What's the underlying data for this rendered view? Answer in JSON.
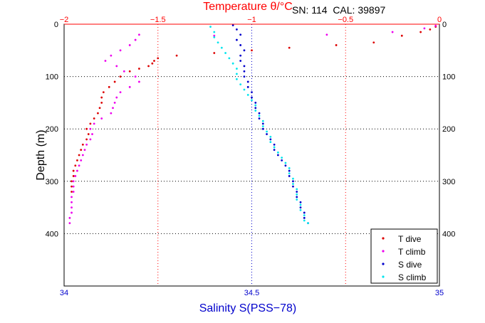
{
  "header": {
    "serial_text": "SN: 114  CAL: 39897"
  },
  "chart_data": {
    "type": "scatter",
    "title": "Temperature θ/°C",
    "xlabel_bottom": "Salinity S(PSS−78)",
    "ylabel": "Depth (m)",
    "x_top": {
      "label": "Temperature θ/°C",
      "range": [
        -2,
        0
      ],
      "ticks": [
        -2,
        -1.5,
        -1,
        -0.5,
        0
      ],
      "tick_labels": [
        "−2",
        "−1.5",
        "−1",
        "−0.5",
        "0"
      ]
    },
    "x_bottom": {
      "label": "Salinity S(PSS−78)",
      "range": [
        34,
        35
      ],
      "ticks": [
        34,
        34.5,
        35
      ],
      "tick_labels": [
        "34",
        "34.5",
        "35"
      ]
    },
    "y": {
      "range": [
        500,
        0
      ],
      "ticks": [
        0,
        100,
        200,
        300,
        400
      ],
      "tick_labels": [
        "0",
        "100",
        "200",
        "300",
        "400"
      ],
      "reversed": true
    },
    "grid": true,
    "legend_position": "bottom-right",
    "colors": {
      "t_dive": "#dd0000",
      "t_climb": "#ee00ee",
      "s_dive": "#0000cc",
      "s_climb": "#00e5ee",
      "top_axis": "#ff0000",
      "bottom_axis": "#0000cc"
    },
    "series": [
      {
        "name": "T dive",
        "axis": "temperature",
        "color": "#dd0000",
        "points": [
          [
            -0.02,
            5
          ],
          [
            -0.05,
            10
          ],
          [
            -0.1,
            15
          ],
          [
            -0.2,
            22
          ],
          [
            -0.35,
            35
          ],
          [
            -0.55,
            40
          ],
          [
            -0.8,
            45
          ],
          [
            -1.0,
            50
          ],
          [
            -1.2,
            55
          ],
          [
            -1.4,
            60
          ],
          [
            -1.5,
            65
          ],
          [
            -1.52,
            70
          ],
          [
            -1.53,
            75
          ],
          [
            -1.55,
            80
          ],
          [
            -1.6,
            85
          ],
          [
            -1.65,
            90
          ],
          [
            -1.7,
            100
          ],
          [
            -1.73,
            110
          ],
          [
            -1.76,
            120
          ],
          [
            -1.79,
            130
          ],
          [
            -1.8,
            140
          ],
          [
            -1.8,
            150
          ],
          [
            -1.81,
            160
          ],
          [
            -1.82,
            170
          ],
          [
            -1.84,
            180
          ],
          [
            -1.86,
            190
          ],
          [
            -1.88,
            200
          ],
          [
            -1.87,
            210
          ],
          [
            -1.88,
            220
          ],
          [
            -1.9,
            230
          ],
          [
            -1.91,
            240
          ],
          [
            -1.92,
            250
          ],
          [
            -1.93,
            260
          ],
          [
            -1.94,
            270
          ],
          [
            -1.95,
            280
          ],
          [
            -1.95,
            290
          ],
          [
            -1.96,
            300
          ],
          [
            -1.96,
            310
          ],
          [
            -1.96,
            320
          ]
        ]
      },
      {
        "name": "T climb",
        "axis": "temperature",
        "color": "#ee00ee",
        "points": [
          [
            -0.02,
            3
          ],
          [
            -0.08,
            8
          ],
          [
            -0.25,
            15
          ],
          [
            -0.6,
            20
          ],
          [
            -1.2,
            22
          ],
          [
            -1.6,
            20
          ],
          [
            -1.62,
            30
          ],
          [
            -1.65,
            40
          ],
          [
            -1.7,
            50
          ],
          [
            -1.75,
            60
          ],
          [
            -1.78,
            70
          ],
          [
            -1.72,
            80
          ],
          [
            -1.68,
            90
          ],
          [
            -1.62,
            100
          ],
          [
            -1.6,
            110
          ],
          [
            -1.65,
            120
          ],
          [
            -1.7,
            130
          ],
          [
            -1.72,
            140
          ],
          [
            -1.73,
            150
          ],
          [
            -1.74,
            160
          ],
          [
            -1.75,
            170
          ],
          [
            -1.8,
            180
          ],
          [
            -1.84,
            190
          ],
          [
            -1.86,
            200
          ],
          [
            -1.85,
            210
          ],
          [
            -1.86,
            220
          ],
          [
            -1.88,
            230
          ],
          [
            -1.89,
            240
          ],
          [
            -1.9,
            250
          ],
          [
            -1.91,
            260
          ],
          [
            -1.92,
            270
          ],
          [
            -1.93,
            280
          ],
          [
            -1.94,
            290
          ],
          [
            -1.95,
            300
          ],
          [
            -1.95,
            310
          ],
          [
            -1.95,
            320
          ],
          [
            -1.96,
            330
          ],
          [
            -1.96,
            340
          ],
          [
            -1.96,
            350
          ],
          [
            -1.96,
            360
          ],
          [
            -1.97,
            370
          ],
          [
            -1.97,
            380
          ]
        ]
      },
      {
        "name": "S dive",
        "axis": "salinity",
        "color": "#0000cc",
        "points": [
          [
            34.45,
            2
          ],
          [
            34.46,
            10
          ],
          [
            34.47,
            20
          ],
          [
            34.46,
            30
          ],
          [
            34.47,
            40
          ],
          [
            34.48,
            50
          ],
          [
            34.47,
            60
          ],
          [
            34.47,
            70
          ],
          [
            34.48,
            80
          ],
          [
            34.48,
            90
          ],
          [
            34.48,
            100
          ],
          [
            34.49,
            110
          ],
          [
            34.49,
            120
          ],
          [
            34.5,
            130
          ],
          [
            34.5,
            140
          ],
          [
            34.51,
            150
          ],
          [
            34.51,
            160
          ],
          [
            34.52,
            170
          ],
          [
            34.52,
            180
          ],
          [
            34.53,
            190
          ],
          [
            34.53,
            200
          ],
          [
            34.54,
            210
          ],
          [
            34.55,
            220
          ],
          [
            34.56,
            230
          ],
          [
            34.56,
            240
          ],
          [
            34.57,
            250
          ],
          [
            34.58,
            260
          ],
          [
            34.59,
            270
          ],
          [
            34.6,
            280
          ],
          [
            34.6,
            290
          ],
          [
            34.61,
            300
          ],
          [
            34.61,
            310
          ],
          [
            34.62,
            320
          ],
          [
            34.62,
            330
          ],
          [
            34.63,
            340
          ],
          [
            34.63,
            350
          ],
          [
            34.64,
            360
          ],
          [
            34.64,
            370
          ],
          [
            34.65,
            380
          ]
        ]
      },
      {
        "name": "S climb",
        "axis": "salinity",
        "color": "#00e5ee",
        "points": [
          [
            34.39,
            5
          ],
          [
            34.4,
            15
          ],
          [
            34.4,
            25
          ],
          [
            34.41,
            35
          ],
          [
            34.42,
            45
          ],
          [
            34.43,
            55
          ],
          [
            34.44,
            65
          ],
          [
            34.45,
            75
          ],
          [
            34.46,
            85
          ],
          [
            34.46,
            95
          ],
          [
            34.46,
            105
          ],
          [
            34.47,
            115
          ],
          [
            34.48,
            125
          ],
          [
            34.49,
            135
          ],
          [
            34.5,
            145
          ],
          [
            34.51,
            155
          ],
          [
            34.51,
            165
          ],
          [
            34.52,
            175
          ],
          [
            34.53,
            185
          ],
          [
            34.53,
            195
          ],
          [
            34.54,
            205
          ],
          [
            34.55,
            215
          ],
          [
            34.55,
            225
          ],
          [
            34.56,
            235
          ],
          [
            34.57,
            245
          ],
          [
            34.58,
            255
          ],
          [
            34.59,
            265
          ],
          [
            34.6,
            275
          ],
          [
            34.6,
            285
          ],
          [
            34.61,
            295
          ],
          [
            34.61,
            305
          ],
          [
            34.62,
            315
          ],
          [
            34.62,
            325
          ],
          [
            34.62,
            335
          ],
          [
            34.63,
            345
          ],
          [
            34.63,
            355
          ],
          [
            34.64,
            365
          ],
          [
            34.64,
            375
          ],
          [
            34.65,
            380
          ]
        ]
      }
    ],
    "legend": [
      "T dive",
      "T climb",
      "S dive",
      "S climb"
    ]
  }
}
